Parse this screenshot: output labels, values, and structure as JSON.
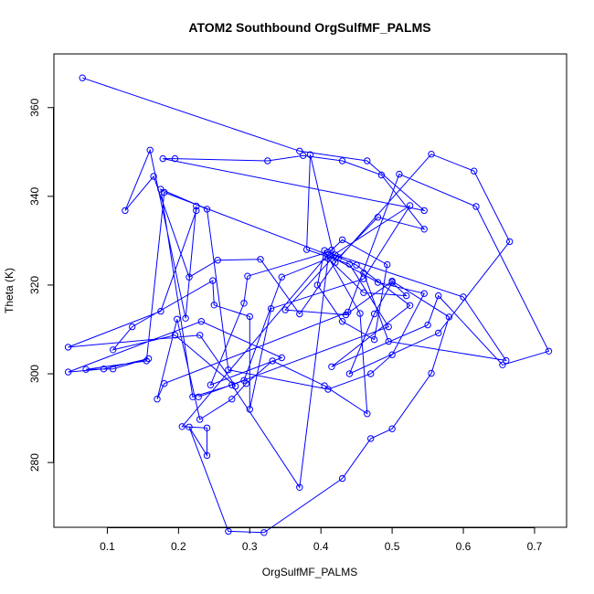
{
  "chart_data": {
    "type": "line",
    "title": "ATOM2 Southbound OrgSulfMF_PALMS",
    "xlabel": "OrgSulfMF_PALMS",
    "ylabel": "Theta (K)",
    "xlim": [
      0.025,
      0.745
    ],
    "ylim": [
      265.4,
      372.1
    ],
    "xticks": [
      0.1,
      0.2,
      0.3,
      0.4,
      0.5,
      0.6,
      0.7
    ],
    "xtick_labels": [
      "0.1",
      "0.2",
      "0.3",
      "0.4",
      "0.5",
      "0.6",
      "0.7"
    ],
    "yticks": [
      280,
      300,
      320,
      340,
      360
    ],
    "ytick_labels": [
      "280",
      "300",
      "320",
      "340",
      "360"
    ],
    "grid": false,
    "markers": "open-circle",
    "series": [
      {
        "color": "#0000ff",
        "x": [
          0.065,
          0.37,
          0.465,
          0.545,
          0.178,
          0.195,
          0.325,
          0.375,
          0.43,
          0.485,
          0.545,
          0.48,
          0.425,
          0.37,
          0.315,
          0.255,
          0.215,
          0.165,
          0.125,
          0.16,
          0.21,
          0.225,
          0.225,
          0.175,
          0.045,
          0.23,
          0.28,
          0.195,
          0.108,
          0.135,
          0.248,
          0.25,
          0.3,
          0.3,
          0.33,
          0.46,
          0.525,
          0.41,
          0.345,
          0.292,
          0.228,
          0.495,
          0.44,
          0.38,
          0.385,
          0.42,
          0.555,
          0.615,
          0.665,
          0.565,
          0.44,
          0.475,
          0.5,
          0.52,
          0.46,
          0.41,
          0.37,
          0.275,
          0.22,
          0.175,
          0.24,
          0.27,
          0.41,
          0.47,
          0.5,
          0.545,
          0.48,
          0.41,
          0.18,
          0.155,
          0.07,
          0.108,
          0.158,
          0.095,
          0.045,
          0.232,
          0.345,
          0.245,
          0.292,
          0.297,
          0.41,
          0.45,
          0.525,
          0.415,
          0.55,
          0.565,
          0.655,
          0.72,
          0.618,
          0.51,
          0.438,
          0.18,
          0.17,
          0.198,
          0.23,
          0.275,
          0.295,
          0.332,
          0.405,
          0.465,
          0.455,
          0.405,
          0.395,
          0.43,
          0.475,
          0.493,
          0.43,
          0.415,
          0.205,
          0.24,
          0.24,
          0.215,
          0.27,
          0.32,
          0.43,
          0.47,
          0.5,
          0.555,
          0.58,
          0.5,
          0.435,
          0.35,
          0.42,
          0.6,
          0.66,
          0.495,
          0.46
        ],
        "y": [
          366.7,
          350.2,
          348.0,
          336.8,
          348.5,
          348.5,
          348.0,
          349.2,
          348.0,
          344.8,
          332.6,
          335.3,
          326.2,
          313.5,
          325.8,
          325.6,
          321.8,
          344.5,
          336.8,
          350.4,
          312.5,
          337.8,
          336.8,
          314.1,
          306.0,
          308.7,
          297.2,
          308.7,
          305.4,
          310.6,
          321.0,
          315.5,
          312.9,
          292.0,
          314.7,
          321.4,
          337.9,
          326.0,
          321.8,
          298.5,
          294.8,
          310.6,
          324.7,
          328.0,
          349.4,
          325.1,
          349.5,
          345.7,
          329.8,
          309.2,
          300.0,
          313.5,
          320.6,
          317.6,
          318.3,
          326.0,
          274.4,
          297.5,
          294.8,
          341.6,
          337.1,
          300.9,
          296.5,
          300.0,
          304.3,
          318.1,
          320.6,
          326.8,
          340.9,
          302.9,
          301.0,
          301.1,
          303.4,
          301.1,
          300.4,
          311.8,
          303.6,
          297.5,
          315.9,
          322.0,
          327.4,
          324.5,
          315.4,
          301.6,
          311.0,
          317.6,
          302.0,
          305.1,
          337.7,
          345.0,
          313.9,
          297.8,
          294.3,
          312.3,
          289.7,
          294.3,
          297.8,
          302.9,
          297.3,
          291.0,
          313.6,
          327.8,
          320.0,
          311.8,
          307.7,
          324.6,
          330.2,
          327.9,
          288.1,
          287.8,
          281.6,
          288.0,
          264.5,
          264.2,
          276.4,
          285.4,
          287.6,
          300.1,
          312.8,
          320.9,
          313.3,
          314.4,
          326.8,
          317.3,
          303.0,
          307.3,
          322.7
        ]
      }
    ]
  }
}
